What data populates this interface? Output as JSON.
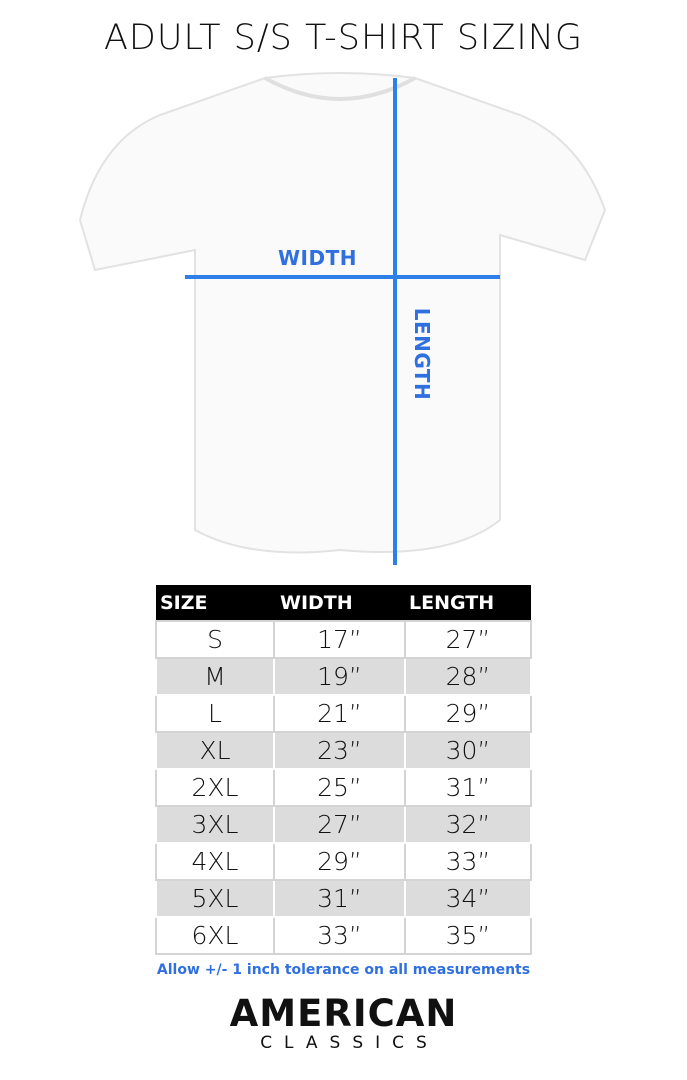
{
  "title": "ADULT S/S T-SHIRT SIZING",
  "diagram": {
    "width_label": "WIDTH",
    "length_label": "LENGTH",
    "line_color": "#2f7fe8"
  },
  "table": {
    "headers": [
      "SIZE",
      "WIDTH",
      "LENGTH"
    ],
    "rows": [
      [
        "S",
        "17”",
        "27”"
      ],
      [
        "M",
        "19”",
        "28”"
      ],
      [
        "L",
        "21”",
        "29”"
      ],
      [
        "XL",
        "23”",
        "30”"
      ],
      [
        "2XL",
        "25”",
        "31”"
      ],
      [
        "3XL",
        "27”",
        "32”"
      ],
      [
        "4XL",
        "29”",
        "33”"
      ],
      [
        "5XL",
        "31”",
        "34”"
      ],
      [
        "6XL",
        "33”",
        "35”"
      ]
    ]
  },
  "note": "Allow +/- 1 inch tolerance on all measurements",
  "logo": {
    "line1": "AMERICAN",
    "line2": "CLASSICS"
  }
}
